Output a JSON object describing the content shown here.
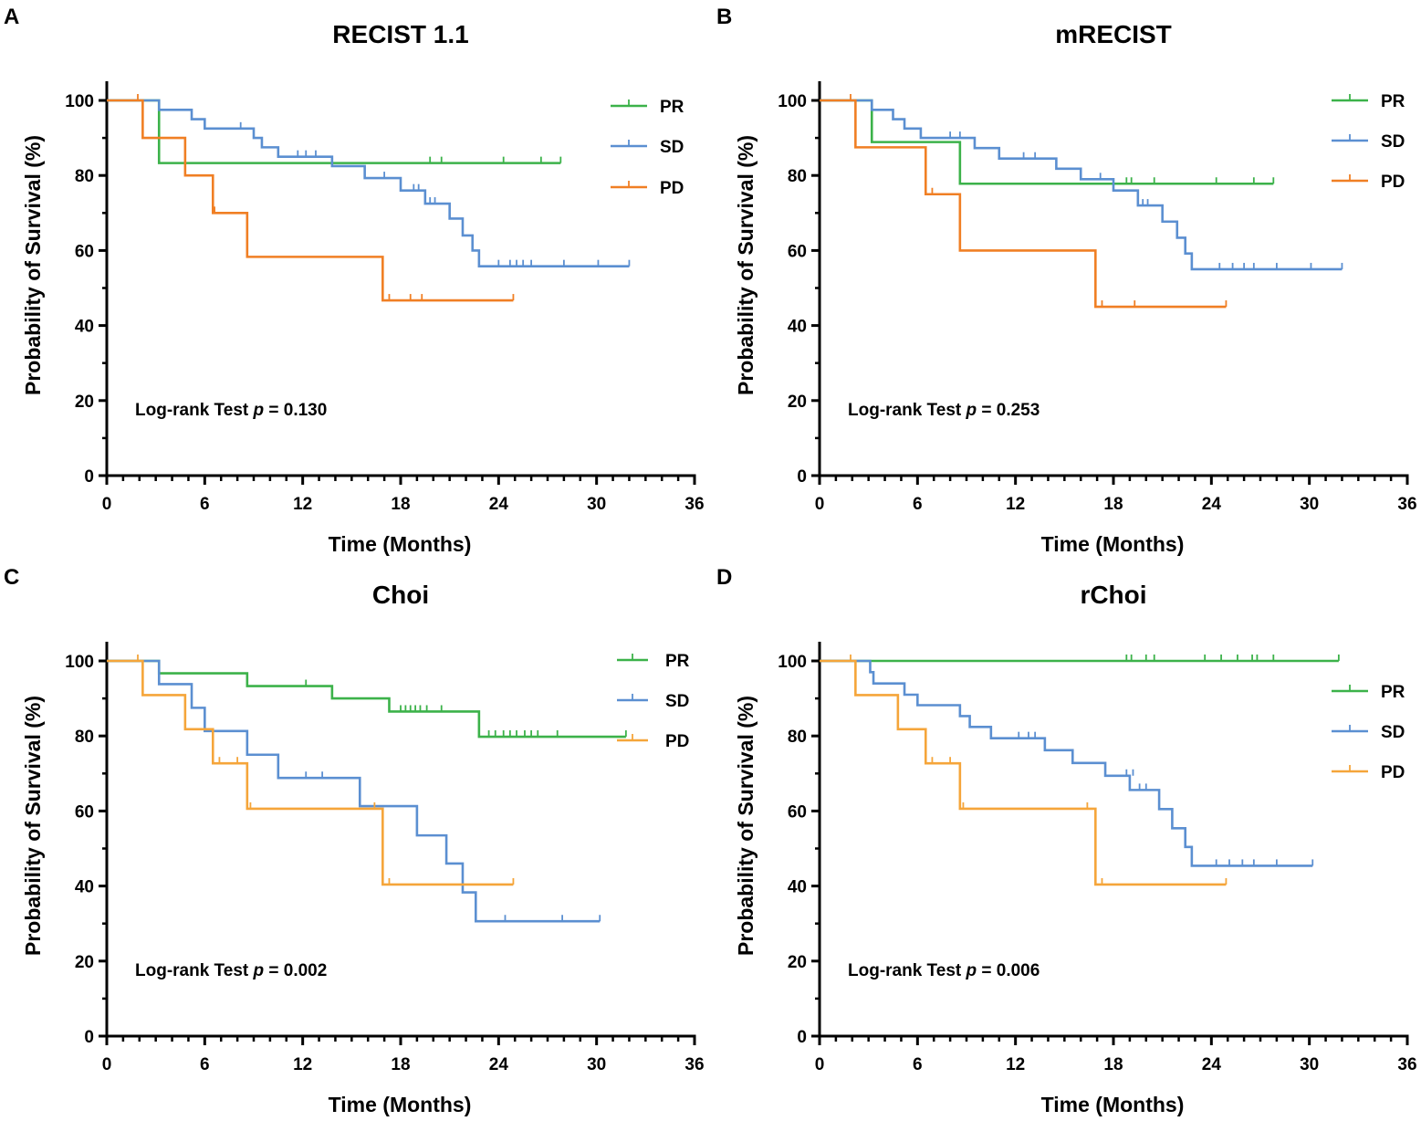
{
  "colors": {
    "PR": "#3cb24a",
    "SD": "#5b8fd1",
    "PD_AB": "#f07f24",
    "PD_CD": "#f5a53a",
    "axis": "#000000"
  },
  "chart_data": [
    {
      "letter": "A",
      "type": "line",
      "subtype": "kaplan-meier",
      "title": "RECIST 1.1",
      "xlabel": "Time (Months)",
      "ylabel": "Probability of Survival (%)",
      "xlim": [
        0,
        36
      ],
      "ylim": [
        0,
        100
      ],
      "xticks": [
        "0",
        "6",
        "12",
        "18",
        "24",
        "30",
        "36"
      ],
      "yticks": [
        "0",
        "20",
        "40",
        "60",
        "80",
        "100"
      ],
      "annotation": {
        "text": "Log-rank Test ",
        "p": "p",
        "value": " = 0.130"
      },
      "legend": [
        "PR",
        "SD",
        "PD"
      ],
      "legend_position": "top-right",
      "series": [
        {
          "name": "PR",
          "color": "#3cb24a",
          "steps": [
            [
              0,
              100
            ],
            [
              3.2,
              83.3
            ]
          ],
          "end": 27.8,
          "censor": [
            [
              19.8,
              83.3
            ],
            [
              20.5,
              83.3
            ],
            [
              24.3,
              83.3
            ],
            [
              26.6,
              83.3
            ],
            [
              27.8,
              83.3
            ]
          ]
        },
        {
          "name": "SD",
          "color": "#5b8fd1",
          "steps": [
            [
              0,
              100
            ],
            [
              3.2,
              97.5
            ],
            [
              5.2,
              95
            ],
            [
              6,
              92.5
            ],
            [
              9,
              90
            ],
            [
              9.5,
              87.5
            ],
            [
              10.5,
              85
            ],
            [
              13.8,
              82.5
            ],
            [
              15.8,
              79.3
            ],
            [
              18,
              76
            ],
            [
              19.5,
              72.5
            ],
            [
              21,
              68.5
            ],
            [
              21.8,
              64
            ],
            [
              22.4,
              60
            ],
            [
              22.8,
              55.8
            ]
          ],
          "end": 32,
          "censor": [
            [
              8.2,
              92.5
            ],
            [
              11.7,
              85
            ],
            [
              12.2,
              85
            ],
            [
              12.8,
              85
            ],
            [
              17,
              79.3
            ],
            [
              18.8,
              76
            ],
            [
              19.1,
              76
            ],
            [
              19.8,
              72.5
            ],
            [
              20.1,
              72.5
            ],
            [
              24,
              55.8
            ],
            [
              24.7,
              55.8
            ],
            [
              25.1,
              55.8
            ],
            [
              25.5,
              55.8
            ],
            [
              26,
              55.8
            ],
            [
              28,
              55.8
            ],
            [
              30.1,
              55.8
            ],
            [
              32,
              55.8
            ]
          ]
        },
        {
          "name": "PD",
          "color": "#f07f24",
          "steps": [
            [
              0,
              100
            ],
            [
              2.2,
              90
            ],
            [
              4.8,
              80
            ],
            [
              6.5,
              70
            ],
            [
              8.6,
              58.3
            ],
            [
              16.9,
              46.7
            ]
          ],
          "end": 24.9,
          "censor": [
            [
              1.9,
              100
            ],
            [
              6.6,
              70
            ],
            [
              17.3,
              46.7
            ],
            [
              18.6,
              46.7
            ],
            [
              19.3,
              46.7
            ],
            [
              24.9,
              46.7
            ]
          ]
        }
      ]
    },
    {
      "letter": "B",
      "type": "line",
      "subtype": "kaplan-meier",
      "title": "mRECIST",
      "xlabel": "Time (Months)",
      "ylabel": "Probability of Survival (%)",
      "xlim": [
        0,
        36
      ],
      "ylim": [
        0,
        100
      ],
      "xticks": [
        "0",
        "6",
        "12",
        "18",
        "24",
        "30",
        "36"
      ],
      "yticks": [
        "0",
        "20",
        "40",
        "60",
        "80",
        "100"
      ],
      "annotation": {
        "text": "Log-rank Test ",
        "p": "p",
        "value": " = 0.253"
      },
      "legend": [
        "PR",
        "SD",
        "PD"
      ],
      "legend_position": "top-right",
      "series": [
        {
          "name": "PR",
          "color": "#3cb24a",
          "steps": [
            [
              0,
              100
            ],
            [
              3.2,
              88.9
            ],
            [
              8.6,
              77.8
            ]
          ],
          "end": 27.8,
          "censor": [
            [
              18.8,
              77.8
            ],
            [
              19.1,
              77.8
            ],
            [
              20.5,
              77.8
            ],
            [
              24.3,
              77.8
            ],
            [
              26.6,
              77.8
            ],
            [
              27.8,
              77.8
            ]
          ]
        },
        {
          "name": "SD",
          "color": "#5b8fd1",
          "steps": [
            [
              0,
              100
            ],
            [
              3.2,
              97.5
            ],
            [
              4.5,
              95
            ],
            [
              5.2,
              92.5
            ],
            [
              6.2,
              90
            ],
            [
              9.5,
              87.3
            ],
            [
              11,
              84.5
            ],
            [
              14.5,
              81.8
            ],
            [
              16,
              79
            ],
            [
              18,
              76
            ],
            [
              19.5,
              72
            ],
            [
              21,
              67.7
            ],
            [
              21.9,
              63.4
            ],
            [
              22.4,
              59.2
            ],
            [
              22.8,
              55
            ]
          ],
          "end": 32,
          "censor": [
            [
              8,
              90
            ],
            [
              8.6,
              90
            ],
            [
              12.5,
              84.5
            ],
            [
              13.2,
              84.5
            ],
            [
              17.2,
              79
            ],
            [
              19.8,
              72
            ],
            [
              20.1,
              72
            ],
            [
              24.5,
              55
            ],
            [
              25.3,
              55
            ],
            [
              26,
              55
            ],
            [
              26.6,
              55
            ],
            [
              28,
              55
            ],
            [
              30.1,
              55
            ],
            [
              32,
              55
            ]
          ]
        },
        {
          "name": "PD",
          "color": "#f07f24",
          "steps": [
            [
              0,
              100
            ],
            [
              2.2,
              87.5
            ],
            [
              6.5,
              75
            ],
            [
              8.6,
              60
            ],
            [
              16.9,
              45
            ]
          ],
          "end": 24.9,
          "censor": [
            [
              1.9,
              100
            ],
            [
              6.9,
              75
            ],
            [
              17.3,
              45
            ],
            [
              19.3,
              45
            ],
            [
              24.9,
              45
            ]
          ]
        }
      ]
    },
    {
      "letter": "C",
      "type": "line",
      "subtype": "kaplan-meier",
      "title": "Choi",
      "xlabel": "Time (Months)",
      "ylabel": "Probability of Survival (%)",
      "xlim": [
        0,
        36
      ],
      "ylim": [
        0,
        100
      ],
      "xticks": [
        "0",
        "6",
        "12",
        "18",
        "24",
        "30",
        "36"
      ],
      "yticks": [
        "0",
        "20",
        "40",
        "60",
        "80",
        "100"
      ],
      "annotation": {
        "text": "Log-rank Test ",
        "p": "p",
        "value": " = 0.002"
      },
      "legend": [
        "PR",
        "SD",
        "PD"
      ],
      "legend_position": "top-right",
      "series": [
        {
          "name": "PR",
          "color": "#3cb24a",
          "steps": [
            [
              0,
              100
            ],
            [
              3.2,
              96.7
            ],
            [
              8.6,
              93.3
            ],
            [
              13.8,
              90
            ],
            [
              17.3,
              86.5
            ],
            [
              22.8,
              79.8
            ]
          ],
          "end": 31.8,
          "censor": [
            [
              12.2,
              93.3
            ],
            [
              18,
              86.5
            ],
            [
              18.3,
              86.5
            ],
            [
              18.6,
              86.5
            ],
            [
              18.9,
              86.5
            ],
            [
              19.2,
              86.5
            ],
            [
              19.6,
              86.5
            ],
            [
              20.5,
              86.5
            ],
            [
              23.4,
              79.8
            ],
            [
              23.8,
              79.8
            ],
            [
              24.3,
              79.8
            ],
            [
              24.7,
              79.8
            ],
            [
              25.1,
              79.8
            ],
            [
              25.6,
              79.8
            ],
            [
              26,
              79.8
            ],
            [
              26.4,
              79.8
            ],
            [
              27.6,
              79.8
            ],
            [
              31.8,
              79.8
            ]
          ]
        },
        {
          "name": "SD",
          "color": "#5b8fd1",
          "steps": [
            [
              0,
              100
            ],
            [
              3.2,
              93.8
            ],
            [
              5.2,
              87.5
            ],
            [
              6,
              81.3
            ],
            [
              8.6,
              75
            ],
            [
              10.5,
              68.8
            ],
            [
              15.5,
              61.3
            ],
            [
              19,
              53.5
            ],
            [
              20.8,
              46
            ],
            [
              21.8,
              38.3
            ],
            [
              22.6,
              30.6
            ]
          ],
          "end": 30.2,
          "censor": [
            [
              12.2,
              68.8
            ],
            [
              13.2,
              68.8
            ],
            [
              24.4,
              30.6
            ],
            [
              27.9,
              30.6
            ],
            [
              30.2,
              30.6
            ]
          ]
        },
        {
          "name": "PD",
          "color": "#f5a53a",
          "steps": [
            [
              0,
              100
            ],
            [
              2.2,
              90.9
            ],
            [
              4.8,
              81.8
            ],
            [
              6.5,
              72.7
            ],
            [
              8.6,
              60.6
            ],
            [
              16.9,
              40.4
            ]
          ],
          "end": 24.9,
          "censor": [
            [
              1.9,
              100
            ],
            [
              6.9,
              72.7
            ],
            [
              8,
              72.7
            ],
            [
              8.8,
              60.6
            ],
            [
              16.4,
              60.6
            ],
            [
              17.3,
              40.4
            ],
            [
              24.9,
              40.4
            ]
          ]
        }
      ]
    },
    {
      "letter": "D",
      "type": "line",
      "subtype": "kaplan-meier",
      "title": "rChoi",
      "xlabel": "Time (Months)",
      "ylabel": "Probability of Survival (%)",
      "xlim": [
        0,
        36
      ],
      "ylim": [
        0,
        100
      ],
      "xticks": [
        "0",
        "6",
        "12",
        "18",
        "24",
        "30",
        "36"
      ],
      "yticks": [
        "0",
        "20",
        "40",
        "60",
        "80",
        "100"
      ],
      "annotation": {
        "text": "Log-rank Test ",
        "p": "p",
        "value": " = 0.006"
      },
      "legend": [
        "PR",
        "SD",
        "PD"
      ],
      "legend_position": "right",
      "series": [
        {
          "name": "PR",
          "color": "#3cb24a",
          "steps": [
            [
              0,
              100
            ]
          ],
          "end": 31.8,
          "censor": [
            [
              18.8,
              100
            ],
            [
              19.1,
              100
            ],
            [
              20,
              100
            ],
            [
              20.5,
              100
            ],
            [
              23.6,
              100
            ],
            [
              24.6,
              100
            ],
            [
              25.6,
              100
            ],
            [
              26.5,
              100
            ],
            [
              26.8,
              100
            ],
            [
              27.8,
              100
            ],
            [
              31.8,
              100
            ]
          ]
        },
        {
          "name": "SD",
          "color": "#5b8fd1",
          "steps": [
            [
              0,
              100
            ],
            [
              3.1,
              97
            ],
            [
              3.3,
              94
            ],
            [
              5.2,
              91
            ],
            [
              6,
              88.2
            ],
            [
              8.6,
              85.3
            ],
            [
              9.2,
              82.4
            ],
            [
              10.5,
              79.4
            ],
            [
              13.8,
              76.2
            ],
            [
              15.5,
              72.8
            ],
            [
              17.5,
              69.4
            ],
            [
              19,
              65.6
            ],
            [
              20.8,
              60.5
            ],
            [
              21.6,
              55.4
            ],
            [
              22.4,
              50.4
            ],
            [
              22.8,
              45.4
            ]
          ],
          "end": 30.2,
          "censor": [
            [
              12.2,
              79.4
            ],
            [
              12.8,
              79.4
            ],
            [
              13.2,
              79.4
            ],
            [
              18.8,
              69.4
            ],
            [
              19.2,
              69.4
            ],
            [
              19.6,
              65.6
            ],
            [
              20,
              65.6
            ],
            [
              24.3,
              45.4
            ],
            [
              25.1,
              45.4
            ],
            [
              25.9,
              45.4
            ],
            [
              26.6,
              45.4
            ],
            [
              28,
              45.4
            ],
            [
              30.2,
              45.4
            ]
          ]
        },
        {
          "name": "PD",
          "color": "#f5a53a",
          "steps": [
            [
              0,
              100
            ],
            [
              2.2,
              90.9
            ],
            [
              4.8,
              81.8
            ],
            [
              6.5,
              72.7
            ],
            [
              8.6,
              60.6
            ],
            [
              16.9,
              40.4
            ]
          ],
          "end": 24.9,
          "censor": [
            [
              1.9,
              100
            ],
            [
              6.9,
              72.7
            ],
            [
              8,
              72.7
            ],
            [
              8.8,
              60.6
            ],
            [
              16.4,
              60.6
            ],
            [
              17.3,
              40.4
            ],
            [
              24.9,
              40.4
            ]
          ]
        }
      ]
    }
  ]
}
